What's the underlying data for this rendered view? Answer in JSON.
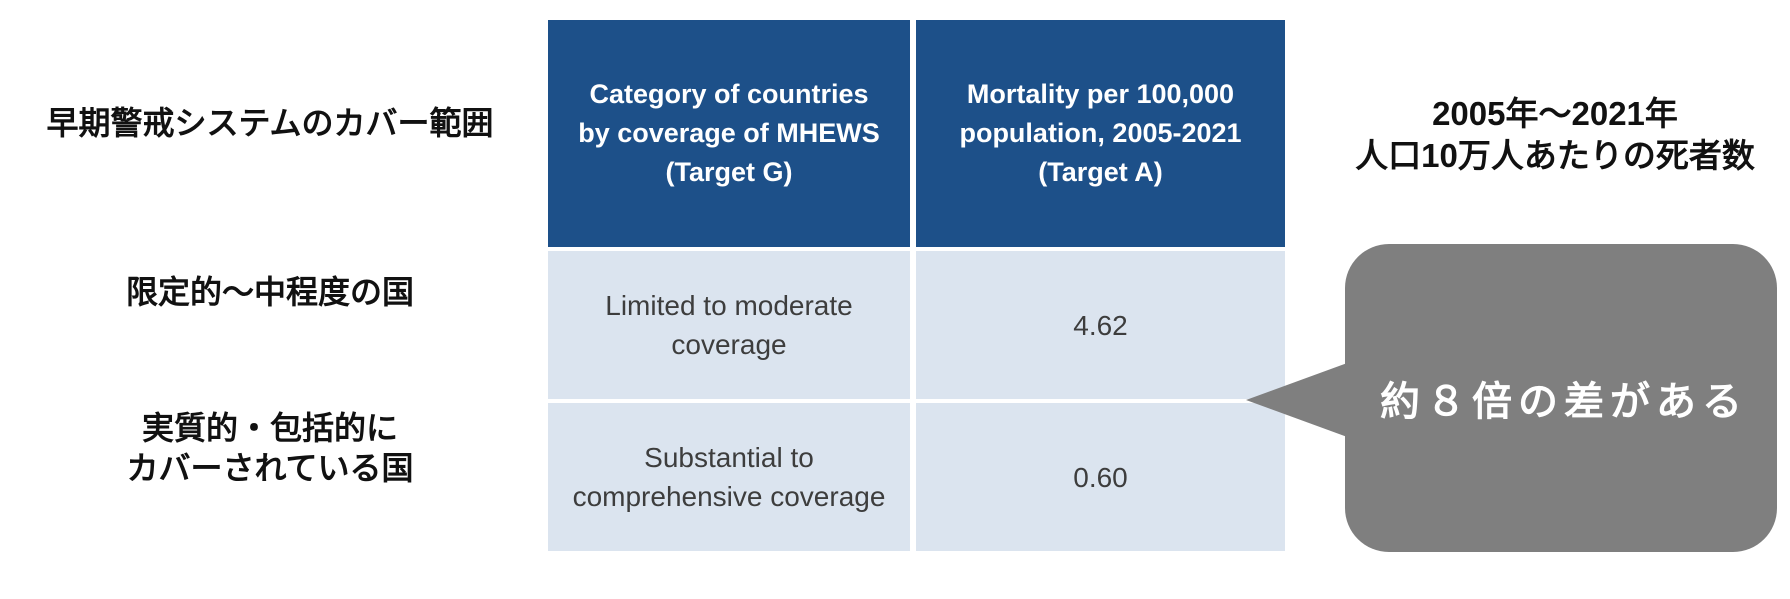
{
  "left_panel": {
    "title": "早期警戒システムのカバー範囲",
    "row_labels": [
      {
        "label": "限定的〜中程度の国"
      },
      {
        "label": "実質的・包括的に\nカバーされている国"
      }
    ]
  },
  "table": {
    "headers": [
      "Category of countries\nby coverage of MHEWS\n(Target G)",
      "Mortality per 100,000\npopulation, 2005-2021\n(Target A)"
    ],
    "rows": [
      {
        "category": "Limited to moderate\ncoverage",
        "value": "4.62"
      },
      {
        "category": "Substantial to\ncomprehensive coverage",
        "value": "0.60"
      }
    ],
    "colors": {
      "header_bg": "#1d5089",
      "header_text": "#ffffff",
      "row_bg": "#dbe4ef",
      "row_text": "#3d3d3d"
    }
  },
  "right_panel": {
    "title": "2005年〜2021年\n人口10万人あたりの死者数",
    "callout": {
      "text": "約８倍の差がある",
      "bg": "#7f7f7f",
      "text_color": "#ffffff"
    }
  },
  "chart_data": {
    "type": "table",
    "title": "早期警戒システムのカバー範囲と死者数の比較",
    "columns": [
      "Category of countries by coverage of MHEWS (Target G)",
      "Mortality per 100,000 population, 2005-2021 (Target A)"
    ],
    "rows": [
      [
        "Limited to moderate coverage",
        4.62
      ],
      [
        "Substantial to comprehensive coverage",
        0.6
      ]
    ],
    "annotation": "約８倍の差がある"
  }
}
